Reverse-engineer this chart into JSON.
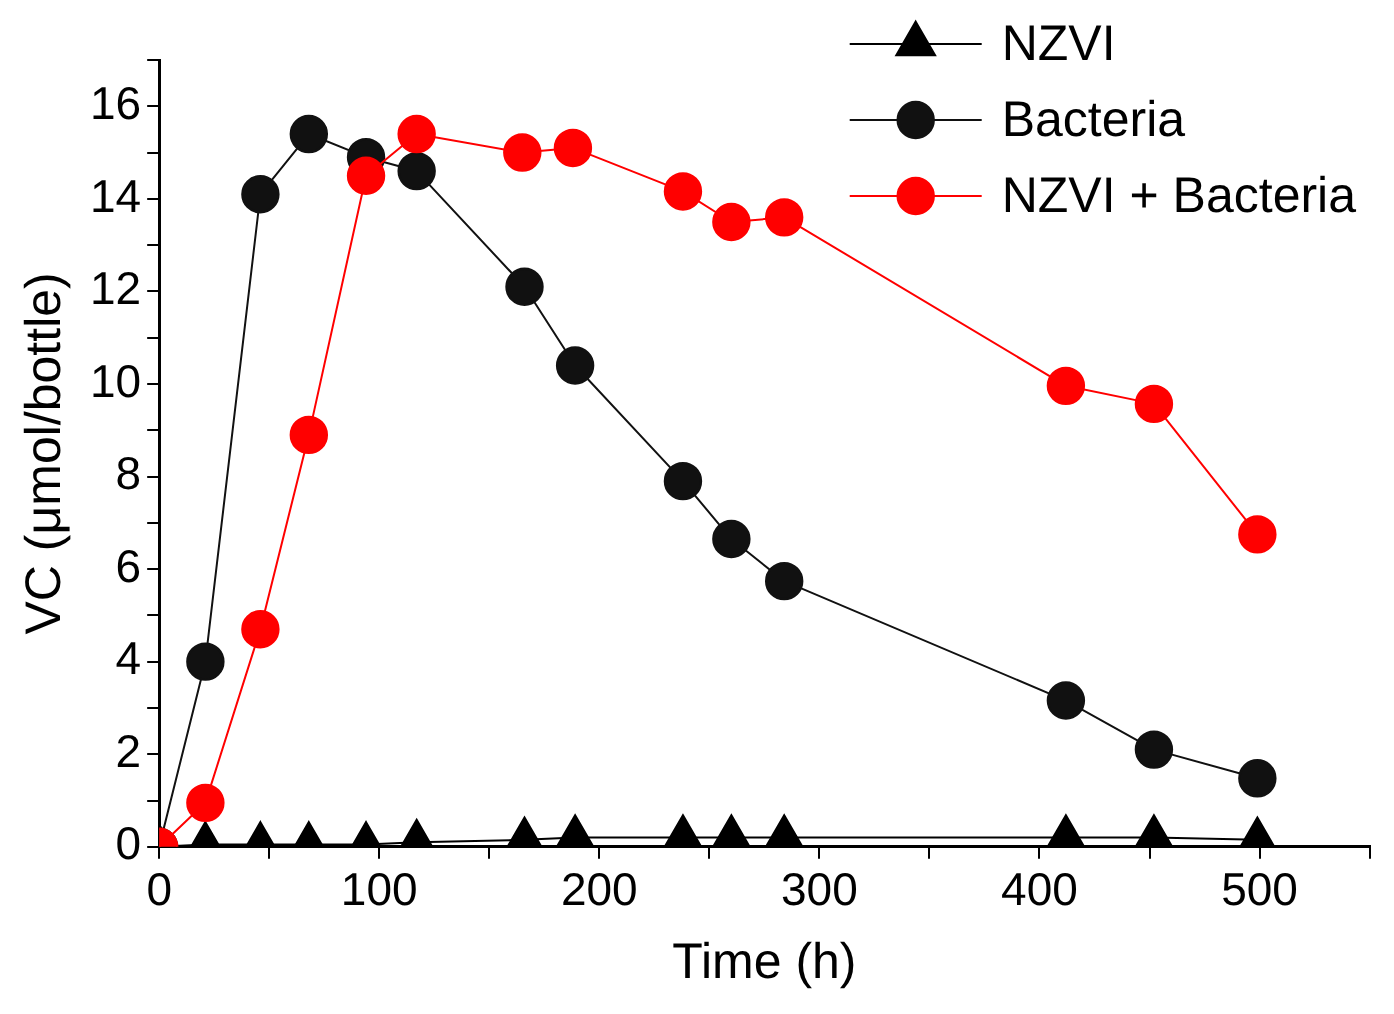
{
  "chart_data": {
    "type": "line",
    "xlabel": "Time (h)",
    "ylabel": "VC (μmol/bottle)",
    "xlim": [
      0,
      550
    ],
    "xticks": [
      0,
      {
        "value": 50,
        "label": null
      },
      100,
      {
        "value": 150,
        "label": null
      },
      200,
      {
        "value": 250,
        "label": null
      },
      300,
      {
        "value": 350,
        "label": null
      },
      400,
      {
        "value": 450,
        "label": null
      },
      500,
      {
        "value": 550,
        "label": null
      }
    ],
    "ylim": [
      0,
      17
    ],
    "yticks": [
      0,
      {
        "value": 1,
        "label": null
      },
      2,
      {
        "value": 3,
        "label": null
      },
      4,
      {
        "value": 5,
        "label": null
      },
      6,
      {
        "value": 7,
        "label": null
      },
      8,
      {
        "value": 9,
        "label": null
      },
      10,
      {
        "value": 11,
        "label": null
      },
      12,
      {
        "value": 13,
        "label": null
      },
      14,
      {
        "value": 15,
        "label": null
      },
      16,
      {
        "value": 17,
        "label": null
      }
    ],
    "grid": false,
    "legend": "top right",
    "line_style": "solid",
    "series": [
      {
        "name": "NZVI",
        "color": "#000000",
        "marker": "triangle",
        "x": [
          0,
          21,
          46,
          68,
          94,
          117,
          166,
          189,
          238,
          260,
          284,
          412,
          452,
          499
        ],
        "values": [
          0,
          0.05,
          0.05,
          0.05,
          0.05,
          0.1,
          0.15,
          0.2,
          0.2,
          0.2,
          0.2,
          0.2,
          0.2,
          0.15
        ]
      },
      {
        "name": "Bacteria",
        "color": "#111111",
        "marker": "circle",
        "x": [
          0,
          21,
          46,
          68,
          94,
          117,
          166,
          189,
          238,
          260,
          284,
          412,
          452,
          499
        ],
        "values": [
          0,
          4.0,
          14.1,
          15.4,
          14.9,
          14.6,
          12.1,
          10.4,
          7.9,
          6.65,
          5.74,
          3.16,
          2.1,
          1.48
        ]
      },
      {
        "name": "NZVI + Bacteria",
        "color": "#ff0000",
        "marker": "circle",
        "x": [
          0,
          21,
          46,
          68,
          94,
          117,
          165,
          188,
          238,
          260,
          284,
          412,
          452,
          499
        ],
        "values": [
          0,
          0.95,
          4.7,
          8.9,
          14.5,
          15.4,
          15.0,
          15.1,
          14.16,
          13.5,
          13.6,
          9.96,
          9.57,
          6.75
        ]
      }
    ]
  }
}
